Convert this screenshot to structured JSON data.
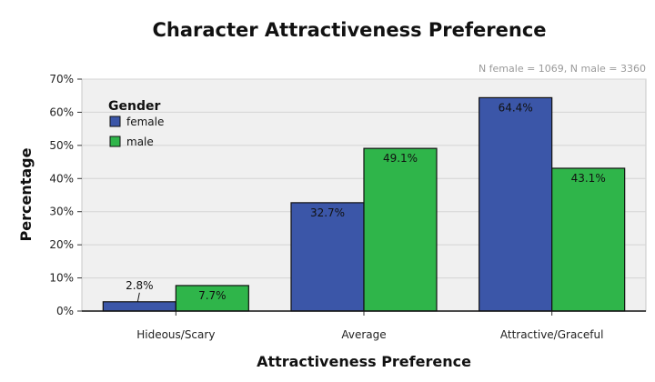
{
  "chart_data": {
    "type": "bar",
    "title": "Character Attractiveness Preference",
    "note": "N female = 1069, N male = 3360",
    "xlabel": "Attractiveness Preference",
    "ylabel": "Percentage",
    "categories": [
      "Hideous/Scary",
      "Average",
      "Attractive/Graceful"
    ],
    "series": [
      {
        "name": "female",
        "values": [
          2.8,
          32.7,
          64.4
        ],
        "labels": [
          "2.8%",
          "32.7%",
          "64.4%"
        ],
        "color": "#3b56a8"
      },
      {
        "name": "male",
        "values": [
          7.7,
          49.1,
          43.1
        ],
        "labels": [
          "7.7%",
          "49.1%",
          "43.1%"
        ],
        "color": "#2fb54a"
      }
    ],
    "ylim": [
      0,
      70
    ],
    "yticks": [
      0,
      10,
      20,
      30,
      40,
      50,
      60,
      70
    ],
    "ytick_labels": [
      "0%",
      "10%",
      "20%",
      "30%",
      "40%",
      "50%",
      "60%",
      "70%"
    ],
    "grid": true,
    "legend": {
      "title": "Gender",
      "placement": "top-left"
    },
    "plot_background": "#f0f0f0"
  }
}
